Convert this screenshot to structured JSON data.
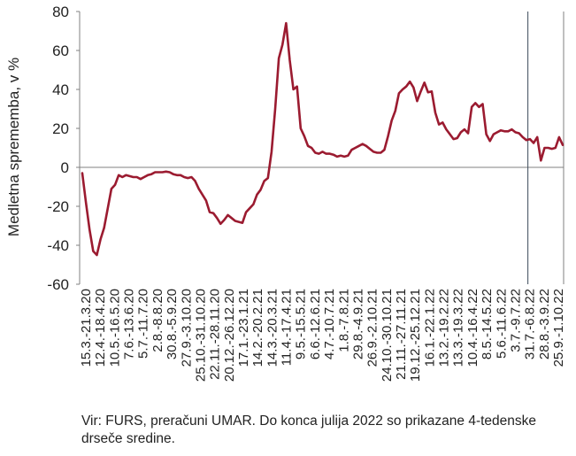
{
  "chart_data": {
    "type": "line",
    "ylabel": "Medletna sprememba, v %",
    "ylim": [
      -60,
      80
    ],
    "yticks": [
      -60,
      -40,
      -20,
      0,
      20,
      40,
      60,
      80
    ],
    "grid": false,
    "color": "#9B1B30",
    "vline_after_label": "31.7.-6.8.22",
    "xtick_labels": [
      "15.3.-21.3.20",
      "12.4.-18.4.20",
      "10.5.-16.5.20",
      "7.6.-13.6.20",
      "5.7.-11.7.20",
      "2.8.-8.8.20",
      "30.8.-5.9.20",
      "27.9.-3.10.20",
      "25.10.-31.10.20",
      "22.11.-28.11.20",
      "20.12.-26.12.20",
      "17.1.-23.1.21",
      "14.2.-20.2.21",
      "14.3.-20.3.21",
      "11.4.-17.4.21",
      "9.5.-15.5.21",
      "6.6.-12.6.21",
      "4.7.-10.7.21",
      "1.8.-7.8.21",
      "29.8.-4.9.21",
      "26.9.-2.10.21",
      "24.10.-30.10.21",
      "21.11.-27.11.21",
      "19.12.-25.12.21",
      "16.1.-22.1.22",
      "13.2.-19.2.22",
      "13.3.-19.3.22",
      "10.4.-16.4.22",
      "8.5.-14.5.22",
      "5.6.-11.6.22",
      "3.7.-9.7.22",
      "31.7.-6.8.22",
      "28.8.-3.9.22",
      "25.9.-1.10.22"
    ],
    "values": [
      -3,
      -18,
      -32,
      -43,
      -45,
      -37,
      -31,
      -21,
      -11,
      -9,
      -4,
      -5,
      -4,
      -4.5,
      -5,
      -5,
      -6,
      -5,
      -4,
      -3.5,
      -2.5,
      -2.5,
      -2.5,
      -2.2,
      -2.5,
      -3.5,
      -4,
      -4,
      -5,
      -5.5,
      -5,
      -7,
      -11,
      -14,
      -17,
      -23,
      -23.5,
      -26,
      -29,
      -27,
      -24.5,
      -26,
      -27.5,
      -28,
      -28.5,
      -23,
      -21,
      -19,
      -14,
      -11.5,
      -7,
      -5.5,
      8,
      30,
      56,
      63,
      74,
      55,
      40,
      41.5,
      20,
      16,
      11,
      10,
      7.5,
      7,
      8,
      7,
      7,
      6.5,
      5.5,
      6,
      5.5,
      6,
      9,
      10,
      11,
      12,
      11,
      9.5,
      8,
      7.5,
      7.5,
      9,
      16,
      24,
      29,
      38,
      40,
      41.5,
      44,
      41,
      34,
      39,
      43.5,
      38.5,
      39,
      28,
      22,
      23,
      19.5,
      17,
      14.5,
      15,
      18,
      19.5,
      17.5,
      31,
      33,
      31,
      32.5,
      17,
      13.5,
      17,
      18,
      19,
      18.5,
      18.5,
      19.5,
      18,
      17.5,
      15.5,
      14,
      14.5,
      12.5,
      15.5,
      3.5,
      10,
      10,
      9.5,
      10,
      15.5,
      11.5
    ]
  },
  "source_note": "Vir: FURS, preračuni UMAR. Do konca julija 2022 so prikazane 4-tedenske drseče sredine."
}
